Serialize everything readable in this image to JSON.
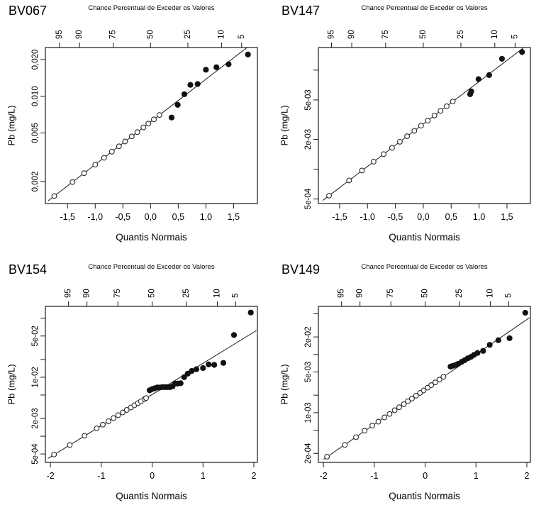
{
  "page": {
    "background": "#ffffff"
  },
  "style": {
    "axis_color": "#1a1a1a",
    "line_color": "#1a1a1a",
    "open_marker_fill": "#ffffff",
    "open_marker_stroke": "#2b2b2b",
    "filled_marker_fill": "#111111",
    "text_color": "#000000"
  },
  "chart_data": [
    {
      "type": "scatter",
      "title": "BV067",
      "top_axis_title": "Chance Percentual de Exceder os Valores",
      "xlabel": "Quantis Normais",
      "ylabel": "Pb (mg/L)",
      "grid": false,
      "y_scale": "log",
      "xlim": [
        -1.9,
        1.93
      ],
      "ylim": [
        0.00132,
        0.0251
      ],
      "x_ticks": [
        {
          "v": -1.5,
          "label": "-1,5"
        },
        {
          "v": -1.0,
          "label": "-1,0"
        },
        {
          "v": -0.5,
          "label": "-0,5"
        },
        {
          "v": 0.0,
          "label": "0,0"
        },
        {
          "v": 0.5,
          "label": "0,5"
        },
        {
          "v": 1.0,
          "label": "1,0"
        },
        {
          "v": 1.5,
          "label": "1,5"
        }
      ],
      "y_ticks": [
        {
          "v": 0.002,
          "label": "0,002"
        },
        {
          "v": 0.005,
          "label": "0,005"
        },
        {
          "v": 0.01,
          "label": "0,010"
        },
        {
          "v": 0.02,
          "label": "0,020"
        }
      ],
      "top_ticks": [
        {
          "v": -1.645,
          "label": "95"
        },
        {
          "v": -1.282,
          "label": "90"
        },
        {
          "v": -0.674,
          "label": "75"
        },
        {
          "v": 0,
          "label": "50"
        },
        {
          "v": 0.674,
          "label": "25"
        },
        {
          "v": 1.282,
          "label": "10"
        },
        {
          "v": 1.645,
          "label": "5"
        }
      ],
      "fit_line": {
        "x1": -1.85,
        "y1": 0.00139,
        "x2": 1.9,
        "y2": 0.0285
      },
      "series": [
        {
          "name": "quantis-na-reta",
          "marker": "open",
          "points": [
            [
              -1.74,
              0.00152
            ],
            [
              -1.41,
              0.00198
            ],
            [
              -1.2,
              0.00234
            ],
            [
              -1.0,
              0.00275
            ],
            [
              -0.84,
              0.00313
            ],
            [
              -0.7,
              0.00351
            ],
            [
              -0.57,
              0.00389
            ],
            [
              -0.46,
              0.00426
            ],
            [
              -0.34,
              0.00469
            ],
            [
              -0.24,
              0.00508
            ],
            [
              -0.13,
              0.00555
            ],
            [
              -0.04,
              0.00597
            ],
            [
              0.06,
              0.00647
            ],
            [
              0.16,
              0.00702
            ]
          ]
        },
        {
          "name": "valores-medidos",
          "marker": "filled",
          "points": [
            [
              0.38,
              0.0067
            ],
            [
              0.49,
              0.0085
            ],
            [
              0.61,
              0.0104
            ],
            [
              0.72,
              0.0124
            ],
            [
              0.85,
              0.0126
            ],
            [
              1.0,
              0.0165
            ],
            [
              1.19,
              0.0173
            ],
            [
              1.41,
              0.0183
            ],
            [
              1.76,
              0.022
            ]
          ]
        }
      ]
    },
    {
      "type": "scatter",
      "title": "BV147",
      "top_axis_title": "Chance Percentual de Exceder os Valores",
      "xlabel": "Quantis Normais",
      "ylabel": "Pb (mg/L)",
      "grid": false,
      "y_scale": "log",
      "xlim": [
        -1.88,
        1.92
      ],
      "ylim": [
        0.00045,
        0.0169
      ],
      "x_ticks": [
        {
          "v": -1.5,
          "label": "-1,5"
        },
        {
          "v": -1.0,
          "label": "-1,0"
        },
        {
          "v": -0.5,
          "label": "-0,5"
        },
        {
          "v": 0.0,
          "label": "0,0"
        },
        {
          "v": 0.5,
          "label": "0,5"
        },
        {
          "v": 1.0,
          "label": "1,0"
        },
        {
          "v": 1.5,
          "label": "1,5"
        }
      ],
      "y_ticks": [
        {
          "v": 0.0005,
          "label": "5e-04"
        },
        {
          "v": 0.001,
          "label": ""
        },
        {
          "v": 0.002,
          "label": "2e-03"
        },
        {
          "v": 0.005,
          "label": "5e-03"
        },
        {
          "v": 0.01,
          "label": ""
        }
      ],
      "top_ticks": [
        {
          "v": -1.645,
          "label": "95"
        },
        {
          "v": -1.282,
          "label": "90"
        },
        {
          "v": -0.674,
          "label": "75"
        },
        {
          "v": 0,
          "label": "50"
        },
        {
          "v": 0.674,
          "label": "25"
        },
        {
          "v": 1.282,
          "label": "10"
        },
        {
          "v": 1.645,
          "label": "5"
        }
      ],
      "fit_line": {
        "x1": -1.8,
        "y1": 0.000484,
        "x2": 1.9,
        "y2": 0.0186
      },
      "series": [
        {
          "name": "quantis-na-reta",
          "marker": "open",
          "points": [
            [
              -1.69,
              0.00054
            ],
            [
              -1.33,
              0.00077
            ],
            [
              -1.1,
              0.00097
            ],
            [
              -0.89,
              0.00119
            ],
            [
              -0.71,
              0.00142
            ],
            [
              -0.56,
              0.00164
            ],
            [
              -0.42,
              0.00189
            ],
            [
              -0.29,
              0.00215
            ],
            [
              -0.16,
              0.00244
            ],
            [
              -0.04,
              0.00275
            ],
            [
              0.08,
              0.00309
            ],
            [
              0.2,
              0.00348
            ],
            [
              0.31,
              0.00388
            ],
            [
              0.42,
              0.00432
            ],
            [
              0.53,
              0.00482
            ]
          ]
        },
        {
          "name": "valores-medidos",
          "marker": "filled",
          "points": [
            [
              0.84,
              0.0057
            ],
            [
              0.86,
              0.0061
            ],
            [
              0.99,
              0.0081
            ],
            [
              1.18,
              0.0089
            ],
            [
              1.41,
              0.013
            ],
            [
              1.77,
              0.0152
            ]
          ]
        }
      ]
    },
    {
      "type": "scatter",
      "title": "BV154",
      "top_axis_title": "Chance Percentual de Exceder os Valores",
      "xlabel": "Quantis Normais",
      "ylabel": "Pb (mg/L)",
      "grid": false,
      "y_scale": "log",
      "xlim": [
        -2.1,
        2.07
      ],
      "ylim": [
        0.00036,
        0.159
      ],
      "x_ticks": [
        {
          "v": -2,
          "label": "-2"
        },
        {
          "v": -1,
          "label": "-1"
        },
        {
          "v": 0,
          "label": "0"
        },
        {
          "v": 1,
          "label": "1"
        },
        {
          "v": 2,
          "label": "2"
        }
      ],
      "y_ticks": [
        {
          "v": 0.0005,
          "label": "5e-04"
        },
        {
          "v": 0.001,
          "label": ""
        },
        {
          "v": 0.002,
          "label": "2e-03"
        },
        {
          "v": 0.005,
          "label": ""
        },
        {
          "v": 0.01,
          "label": "1e-02"
        },
        {
          "v": 0.02,
          "label": ""
        },
        {
          "v": 0.05,
          "label": "5e-02"
        },
        {
          "v": 0.1,
          "label": ""
        }
      ],
      "top_ticks": [
        {
          "v": -1.645,
          "label": "95"
        },
        {
          "v": -1.282,
          "label": "90"
        },
        {
          "v": -0.674,
          "label": "75"
        },
        {
          "v": 0,
          "label": "50"
        },
        {
          "v": 0.674,
          "label": "25"
        },
        {
          "v": 1.282,
          "label": "10"
        },
        {
          "v": 1.645,
          "label": "5"
        }
      ],
      "fit_line": {
        "x1": -2.05,
        "y1": 0.00042,
        "x2": 2.05,
        "y2": 0.0618
      },
      "series": [
        {
          "name": "quantis-na-reta",
          "marker": "open",
          "points": [
            [
              -1.93,
              0.00049
            ],
            [
              -1.62,
              0.00071
            ],
            [
              -1.33,
              0.00102
            ],
            [
              -1.09,
              0.00136
            ],
            [
              -0.97,
              0.00157
            ],
            [
              -0.86,
              0.0018
            ],
            [
              -0.76,
              0.00203
            ],
            [
              -0.67,
              0.00227
            ],
            [
              -0.58,
              0.00253
            ],
            [
              -0.5,
              0.00279
            ],
            [
              -0.42,
              0.00307
            ],
            [
              -0.35,
              0.00334
            ],
            [
              -0.28,
              0.00364
            ],
            [
              -0.22,
              0.00392
            ],
            [
              -0.15,
              0.00426
            ],
            [
              -0.12,
              0.00443
            ]
          ]
        },
        {
          "name": "valores-medidos",
          "marker": "filled",
          "points": [
            [
              -0.05,
              0.006
            ],
            [
              0.0,
              0.0063
            ],
            [
              0.05,
              0.0065
            ],
            [
              0.1,
              0.0067
            ],
            [
              0.15,
              0.0067
            ],
            [
              0.2,
              0.0068
            ],
            [
              0.25,
              0.0068
            ],
            [
              0.3,
              0.0068
            ],
            [
              0.35,
              0.0068
            ],
            [
              0.4,
              0.007
            ],
            [
              0.45,
              0.0078
            ],
            [
              0.5,
              0.0078
            ],
            [
              0.56,
              0.0079
            ],
            [
              0.63,
              0.01
            ],
            [
              0.7,
              0.0115
            ],
            [
              0.78,
              0.0128
            ],
            [
              0.87,
              0.0137
            ],
            [
              1.0,
              0.0143
            ],
            [
              1.11,
              0.0165
            ],
            [
              1.22,
              0.0162
            ],
            [
              1.4,
              0.0175
            ],
            [
              1.61,
              0.052
            ],
            [
              1.94,
              0.125
            ]
          ]
        }
      ]
    },
    {
      "type": "scatter",
      "title": "BV149",
      "top_axis_title": "Chance Percentual de Exceder os Valores",
      "xlabel": "Quantis Normais",
      "ylabel": "Pb (mg/L)",
      "grid": false,
      "y_scale": "log",
      "xlim": [
        -2.1,
        2.07
      ],
      "ylim": [
        0.00014,
        0.067
      ],
      "x_ticks": [
        {
          "v": -2,
          "label": "-2"
        },
        {
          "v": -1,
          "label": "-1"
        },
        {
          "v": 0,
          "label": "0"
        },
        {
          "v": 1,
          "label": "1"
        },
        {
          "v": 2,
          "label": "2"
        }
      ],
      "y_ticks": [
        {
          "v": 0.0002,
          "label": "2e-04"
        },
        {
          "v": 0.0005,
          "label": ""
        },
        {
          "v": 0.001,
          "label": "1e-03"
        },
        {
          "v": 0.002,
          "label": ""
        },
        {
          "v": 0.005,
          "label": "5e-03"
        },
        {
          "v": 0.01,
          "label": ""
        },
        {
          "v": 0.02,
          "label": "2e-02"
        },
        {
          "v": 0.05,
          "label": ""
        }
      ],
      "top_ticks": [
        {
          "v": -1.645,
          "label": "95"
        },
        {
          "v": -1.282,
          "label": "90"
        },
        {
          "v": -0.674,
          "label": "75"
        },
        {
          "v": 0,
          "label": "50"
        },
        {
          "v": 0.674,
          "label": "25"
        },
        {
          "v": 1.282,
          "label": "10"
        },
        {
          "v": 1.645,
          "label": "5"
        }
      ],
      "fit_line": {
        "x1": -2.0,
        "y1": 0.000158,
        "x2": 2.05,
        "y2": 0.0427
      },
      "series": [
        {
          "name": "quantis-na-reta",
          "marker": "open",
          "points": [
            [
              -1.93,
              0.000175
            ],
            [
              -1.58,
              0.00028
            ],
            [
              -1.36,
              0.00038
            ],
            [
              -1.19,
              0.00049
            ],
            [
              -1.04,
              0.0006
            ],
            [
              -0.92,
              0.0007
            ],
            [
              -0.8,
              0.00083
            ],
            [
              -0.7,
              0.00095
            ],
            [
              -0.6,
              0.0011
            ],
            [
              -0.51,
              0.00124
            ],
            [
              -0.42,
              0.0014
            ],
            [
              -0.34,
              0.00157
            ],
            [
              -0.26,
              0.00175
            ],
            [
              -0.18,
              0.00196
            ],
            [
              -0.1,
              0.00219
            ],
            [
              -0.03,
              0.00241
            ],
            [
              0.05,
              0.00269
            ],
            [
              0.12,
              0.00297
            ],
            [
              0.2,
              0.00331
            ],
            [
              0.28,
              0.0037
            ],
            [
              0.36,
              0.00413
            ]
          ]
        },
        {
          "name": "valores-medidos",
          "marker": "filled",
          "points": [
            [
              0.5,
              0.0062
            ],
            [
              0.55,
              0.0064
            ],
            [
              0.6,
              0.0066
            ],
            [
              0.65,
              0.0069
            ],
            [
              0.72,
              0.0075
            ],
            [
              0.78,
              0.008
            ],
            [
              0.84,
              0.0086
            ],
            [
              0.9,
              0.0091
            ],
            [
              0.96,
              0.0098
            ],
            [
              1.03,
              0.0106
            ],
            [
              1.14,
              0.0115
            ],
            [
              1.27,
              0.0146
            ],
            [
              1.44,
              0.0176
            ],
            [
              1.66,
              0.019
            ],
            [
              1.97,
              0.052
            ]
          ]
        }
      ]
    }
  ]
}
